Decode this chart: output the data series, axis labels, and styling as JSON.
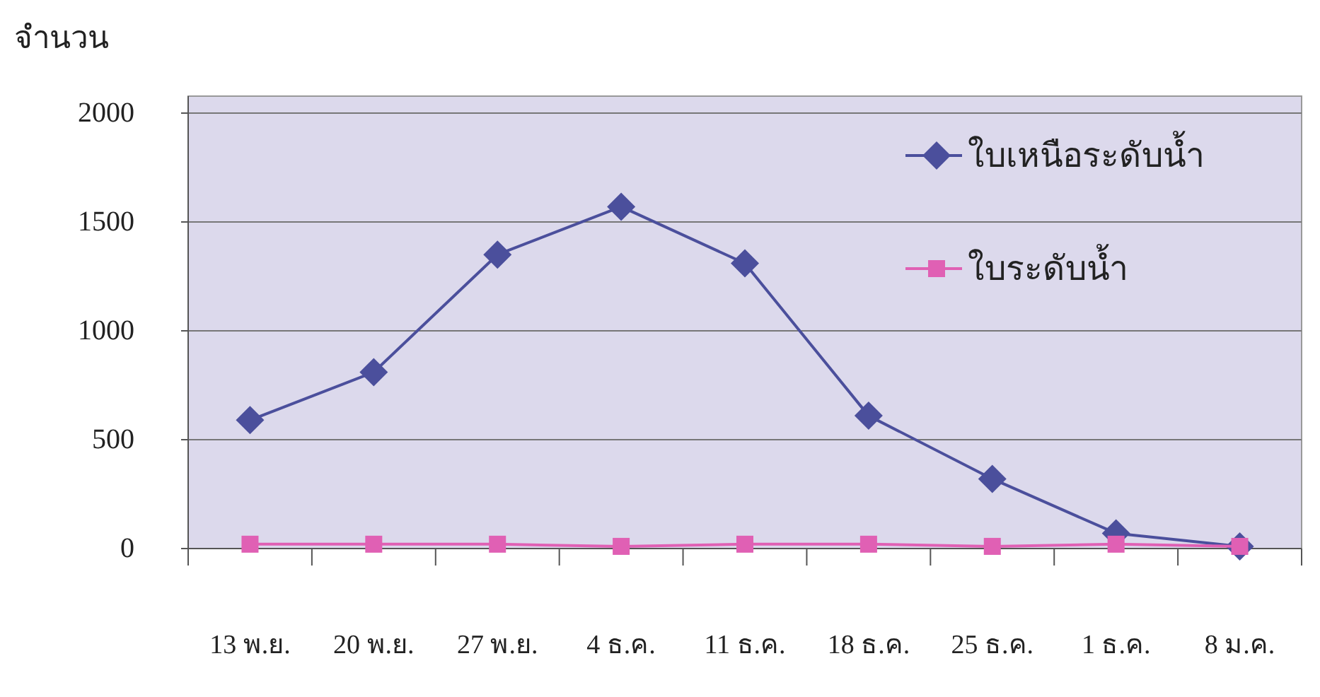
{
  "chart_data": {
    "type": "line",
    "ylabel": "จำนวน",
    "categories": [
      "13 พ.ย.",
      "20 พ.ย.",
      "27 พ.ย.",
      "4 ธ.ค.",
      "11 ธ.ค.",
      "18 ธ.ค.",
      "25 ธ.ค.",
      "1 ธ.ค.",
      "8 ม.ค."
    ],
    "series": [
      {
        "name": "ใบเหนือระดับน้ำ",
        "color": "#4b4f9c",
        "marker": "diamond",
        "values": [
          590,
          810,
          1350,
          1570,
          1310,
          610,
          320,
          70,
          10
        ]
      },
      {
        "name": "ใบระดับน้ำ",
        "color": "#e060b4",
        "marker": "square",
        "values": [
          20,
          20,
          20,
          10,
          20,
          20,
          10,
          20,
          10
        ]
      }
    ],
    "ylim": [
      0,
      2000
    ],
    "yticks": [
      0,
      500,
      1000,
      1500,
      2000
    ],
    "grid": "y",
    "legend": "top right",
    "line_style": "solid"
  }
}
